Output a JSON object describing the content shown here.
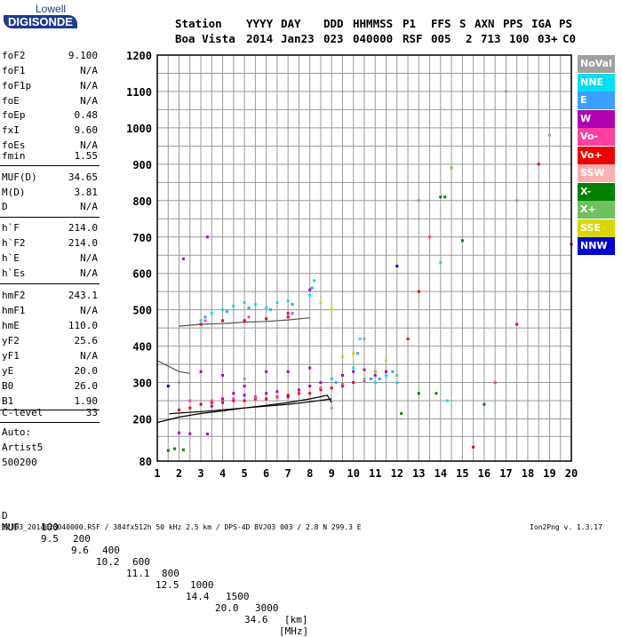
{
  "logo": {
    "top": "Lowell",
    "main": "DIGISONDE"
  },
  "header": {
    "labels": [
      "Station",
      "YYYY",
      "DAY",
      "DDD",
      "HHMMSS",
      "P1",
      "FFS",
      "S",
      "AXN",
      "PPS",
      "IGA",
      "PS"
    ],
    "values": [
      "Boa Vista",
      "2014",
      "Jan23",
      "023",
      "040000",
      "RSF",
      "005",
      "2",
      "713",
      "100",
      "03+",
      "C0"
    ]
  },
  "params": [
    {
      "name": "foF2",
      "value": "9.100"
    },
    {
      "name": "foF1",
      "value": "N/A"
    },
    {
      "name": "foF1p",
      "value": "N/A"
    },
    {
      "name": "foE",
      "value": "N/A"
    },
    {
      "name": "foEp",
      "value": "0.48"
    },
    {
      "name": "fxI",
      "value": "9.60"
    },
    {
      "name": "foEs",
      "value": "N/A"
    },
    {
      "name": "fmin",
      "value": "1.55"
    },
    {
      "name": "MUF(D)",
      "value": "34.65"
    },
    {
      "name": "M(D)",
      "value": "3.81"
    },
    {
      "name": "D",
      "value": "N/A"
    },
    {
      "name": "h`F",
      "value": "214.0"
    },
    {
      "name": "h`F2",
      "value": "214.0"
    },
    {
      "name": "h`E",
      "value": "N/A"
    },
    {
      "name": "h`Es",
      "value": "N/A"
    },
    {
      "name": "hmF2",
      "value": "243.1"
    },
    {
      "name": "hmF1",
      "value": "N/A"
    },
    {
      "name": "hmE",
      "value": "110.0"
    },
    {
      "name": "yF2",
      "value": "25.6"
    },
    {
      "name": "yF1",
      "value": "N/A"
    },
    {
      "name": "yE",
      "value": "20.0"
    },
    {
      "name": "B0",
      "value": "26.0"
    },
    {
      "name": "B1",
      "value": "1.90"
    },
    {
      "name": "C-level",
      "value": "33"
    }
  ],
  "auto": [
    "Auto:",
    "Artist5",
    "500200"
  ],
  "legend": [
    {
      "label": "NoVal",
      "color": "#a0a0a0"
    },
    {
      "label": "NNE",
      "color": "#00e0f0"
    },
    {
      "label": "E",
      "color": "#3aa0ff"
    },
    {
      "label": "W",
      "color": "#b000b0"
    },
    {
      "label": "Vo-",
      "color": "#ff40a0"
    },
    {
      "label": "Vo+",
      "color": "#ee0000"
    },
    {
      "label": "SSW",
      "color": "#ffb0b0"
    },
    {
      "label": "X-",
      "color": "#008000"
    },
    {
      "label": "X+",
      "color": "#70c060"
    },
    {
      "label": "SSE",
      "color": "#d8d800"
    },
    {
      "label": "NNW",
      "color": "#0000d0"
    }
  ],
  "muf_table": {
    "d_label": "D",
    "d_values": [
      "100",
      "200",
      "400",
      "600",
      "800",
      "1000",
      "1500",
      "3000"
    ],
    "d_unit": "[km]",
    "muf_label": "MUF",
    "muf_values": [
      "9.5",
      "9.6",
      "10.2",
      "11.1",
      "12.5",
      "14.4",
      "20.0",
      "34.6"
    ],
    "muf_unit": "[MHz]"
  },
  "footer": {
    "left": "BVJ03_2014023040000.RSF / 384fx512h 50 kHz 2.5 km / DPS-4D BVJ03 003 / 2.8 N 299.3 E",
    "right": "Ion2Png v. 1.3.17"
  },
  "chart_data": {
    "type": "scatter",
    "xlim": [
      1,
      20
    ],
    "ylim": [
      80,
      1200
    ],
    "x_ticks": [
      1,
      2,
      3,
      4,
      5,
      6,
      7,
      8,
      9,
      10,
      11,
      12,
      13,
      14,
      15,
      16,
      17,
      18,
      19,
      20
    ],
    "y_ticks": [
      80,
      200,
      300,
      400,
      500,
      600,
      700,
      800,
      900,
      1000,
      1100,
      1200
    ],
    "grid": true,
    "legend_position": "right",
    "series": [
      {
        "name": "W",
        "color": "#b000b0",
        "points": [
          [
            2.0,
            160
          ],
          [
            2.5,
            158
          ],
          [
            3.3,
            157
          ],
          [
            3.5,
            235
          ],
          [
            4.0,
            255
          ],
          [
            4.5,
            270
          ],
          [
            5.0,
            265
          ],
          [
            5.5,
            260
          ],
          [
            6.0,
            270
          ],
          [
            6.5,
            275
          ],
          [
            7.0,
            260
          ],
          [
            7.5,
            280
          ],
          [
            8.0,
            290
          ],
          [
            8.5,
            300
          ],
          [
            9.0,
            310
          ],
          [
            9.5,
            320
          ],
          [
            10.0,
            330
          ],
          [
            10.5,
            335
          ],
          [
            11.0,
            320
          ],
          [
            11.5,
            330
          ],
          [
            3.0,
            330
          ],
          [
            4.0,
            320
          ],
          [
            5.0,
            290
          ],
          [
            6.0,
            330
          ],
          [
            7.0,
            330
          ],
          [
            8.0,
            340
          ],
          [
            2.2,
            640
          ],
          [
            3.3,
            700
          ],
          [
            7.0,
            490
          ],
          [
            8.0,
            555
          ]
        ]
      },
      {
        "name": "NNE",
        "color": "#00e0f0",
        "points": [
          [
            3.0,
            470
          ],
          [
            3.5,
            490
          ],
          [
            4.0,
            500
          ],
          [
            4.5,
            510
          ],
          [
            5.0,
            520
          ],
          [
            5.5,
            515
          ],
          [
            6.0,
            505
          ],
          [
            6.5,
            520
          ],
          [
            7.0,
            525
          ],
          [
            8.0,
            540
          ],
          [
            8.2,
            580
          ],
          [
            9.0,
            310
          ],
          [
            10.0,
            340
          ],
          [
            10.3,
            420
          ],
          [
            11.0,
            300
          ],
          [
            11.5,
            320
          ],
          [
            12.0,
            300
          ],
          [
            14.3,
            250
          ],
          [
            14.0,
            630
          ]
        ]
      },
      {
        "name": "E",
        "color": "#3aa0ff",
        "points": [
          [
            3.2,
            480
          ],
          [
            4.2,
            495
          ],
          [
            5.2,
            505
          ],
          [
            6.2,
            500
          ],
          [
            7.2,
            515
          ],
          [
            8.1,
            560
          ],
          [
            9.2,
            300
          ],
          [
            10.2,
            380
          ],
          [
            10.8,
            310
          ],
          [
            11.2,
            310
          ],
          [
            11.8,
            330
          ]
        ]
      },
      {
        "name": "Vo+",
        "color": "#ee0000",
        "points": [
          [
            2.0,
            225
          ],
          [
            2.5,
            230
          ],
          [
            3.0,
            240
          ],
          [
            3.5,
            245
          ],
          [
            4.0,
            245
          ],
          [
            4.5,
            250
          ],
          [
            5.0,
            250
          ],
          [
            5.5,
            255
          ],
          [
            6.0,
            255
          ],
          [
            6.5,
            260
          ],
          [
            7.0,
            265
          ],
          [
            7.5,
            270
          ],
          [
            8.0,
            270
          ],
          [
            8.5,
            280
          ],
          [
            9.0,
            285
          ],
          [
            9.5,
            290
          ],
          [
            10.0,
            300
          ],
          [
            3.0,
            460
          ],
          [
            4.0,
            470
          ],
          [
            5.0,
            470
          ],
          [
            6.0,
            475
          ],
          [
            7.0,
            480
          ],
          [
            15.5,
            120
          ],
          [
            18.5,
            900
          ],
          [
            17.5,
            460
          ],
          [
            20.0,
            680
          ],
          [
            12.5,
            420
          ],
          [
            13.0,
            550
          ]
        ]
      },
      {
        "name": "Vo-",
        "color": "#ff40a0",
        "points": [
          [
            2.5,
            250
          ],
          [
            3.5,
            250
          ],
          [
            4.5,
            255
          ],
          [
            5.5,
            258
          ],
          [
            6.5,
            262
          ],
          [
            7.5,
            275
          ],
          [
            8.5,
            285
          ],
          [
            9.5,
            295
          ],
          [
            10.5,
            305
          ],
          [
            3.2,
            470
          ],
          [
            5.2,
            480
          ],
          [
            7.2,
            490
          ],
          [
            13.5,
            700
          ],
          [
            16.5,
            300
          ]
        ]
      },
      {
        "name": "X-",
        "color": "#008000",
        "points": [
          [
            1.5,
            110
          ],
          [
            1.8,
            115
          ],
          [
            2.2,
            112
          ],
          [
            13.0,
            270
          ],
          [
            14.0,
            810
          ],
          [
            14.2,
            810
          ],
          [
            13.8,
            270
          ],
          [
            12.2,
            215
          ],
          [
            15.0,
            690
          ],
          [
            16.0,
            240
          ]
        ]
      },
      {
        "name": "X+",
        "color": "#70c060",
        "points": [
          [
            11.0,
            330
          ],
          [
            12.0,
            320
          ],
          [
            10.5,
            310
          ],
          [
            14.5,
            890
          ],
          [
            17.5,
            800
          ]
        ]
      },
      {
        "name": "SSE",
        "color": "#d8d800",
        "points": [
          [
            8.5,
            520
          ],
          [
            9.0,
            500
          ],
          [
            10.0,
            380
          ],
          [
            9.5,
            370
          ],
          [
            11.5,
            360
          ]
        ]
      },
      {
        "name": "NNW",
        "color": "#0000d0",
        "points": [
          [
            12.0,
            620
          ],
          [
            1.5,
            290
          ]
        ]
      },
      {
        "name": "NoVal",
        "color": "#a0a0a0",
        "points": [
          [
            2.0,
            300
          ],
          [
            5.0,
            310
          ],
          [
            9.0,
            230
          ],
          [
            10.5,
            420
          ],
          [
            13.0,
            800
          ],
          [
            17.0,
            1100
          ],
          [
            19.0,
            980
          ]
        ]
      }
    ],
    "curves": [
      {
        "name": "profile",
        "color": "#000000",
        "points": [
          [
            1.0,
            190
          ],
          [
            2.0,
            205
          ],
          [
            3.0,
            215
          ],
          [
            4.0,
            222
          ],
          [
            5.0,
            230
          ],
          [
            6.0,
            237
          ],
          [
            7.0,
            245
          ],
          [
            8.0,
            255
          ],
          [
            8.8,
            265
          ],
          [
            9.0,
            245
          ]
        ]
      },
      {
        "name": "trace",
        "color": "#000000",
        "points": [
          [
            1.55,
            214
          ],
          [
            2.0,
            216
          ],
          [
            3.0,
            220
          ],
          [
            4.0,
            225
          ],
          [
            5.0,
            230
          ],
          [
            6.0,
            235
          ],
          [
            7.0,
            240
          ],
          [
            8.0,
            247
          ],
          [
            9.0,
            255
          ]
        ]
      },
      {
        "name": "upper",
        "color": "#555555",
        "points": [
          [
            1.0,
            360
          ],
          [
            1.5,
            345
          ],
          [
            2.0,
            330
          ],
          [
            2.5,
            325
          ]
        ]
      },
      {
        "name": "upper2",
        "color": "#555555",
        "points": [
          [
            2.0,
            455
          ],
          [
            3.0,
            460
          ],
          [
            4.0,
            462
          ],
          [
            5.0,
            466
          ],
          [
            6.0,
            468
          ],
          [
            7.0,
            472
          ],
          [
            8.0,
            478
          ]
        ]
      }
    ]
  }
}
